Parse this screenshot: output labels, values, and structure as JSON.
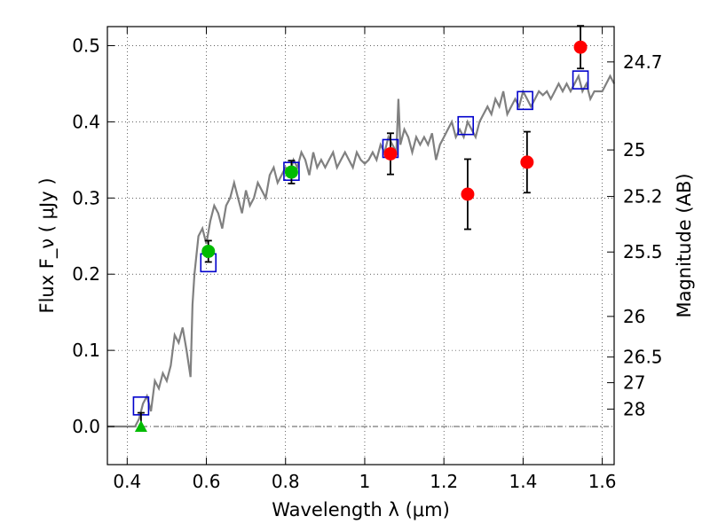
{
  "chart_data": {
    "type": "scatter",
    "xlabel": "Wavelength  λ (μm)",
    "ylabel": "Flux  F_ν  ( μJy )",
    "y2label": "Magnitude (AB)",
    "xlim": [
      0.35,
      1.63
    ],
    "ylim": [
      -0.05,
      0.525
    ],
    "grid": true,
    "x_ticks": [
      0.4,
      0.6,
      0.8,
      1.0,
      1.2,
      1.4,
      1.6
    ],
    "x_tick_labels": [
      "0.4",
      "0.6",
      "0.8",
      "1",
      "1.2",
      "1.4",
      "1.6"
    ],
    "y_ticks": [
      0.0,
      0.1,
      0.2,
      0.3,
      0.4,
      0.5
    ],
    "y_tick_labels": [
      "0.0",
      "0.1",
      "0.2",
      "0.3",
      "0.4",
      "0.5"
    ],
    "y2_ticks": [
      "24.7",
      "25",
      "25.2",
      "25.5",
      "26",
      "26.5",
      "27",
      "28"
    ],
    "colors": {
      "template": "#808080",
      "model_box": "#0000cc",
      "red_point": "#ff0000",
      "green_point": "#00bb00",
      "error_bar": "#000000",
      "zero_line": "#555555"
    },
    "series": [
      {
        "kind": "line",
        "color_key": "template",
        "x": [
          0.35,
          0.42,
          0.43,
          0.44,
          0.45,
          0.46,
          0.47,
          0.48,
          0.49,
          0.5,
          0.51,
          0.52,
          0.53,
          0.54,
          0.55,
          0.56,
          0.565,
          0.57,
          0.58,
          0.59,
          0.6,
          0.61,
          0.62,
          0.63,
          0.64,
          0.65,
          0.66,
          0.67,
          0.68,
          0.69,
          0.7,
          0.71,
          0.72,
          0.73,
          0.74,
          0.75,
          0.76,
          0.77,
          0.78,
          0.79,
          0.8,
          0.81,
          0.82,
          0.83,
          0.84,
          0.85,
          0.86,
          0.87,
          0.88,
          0.89,
          0.9,
          0.91,
          0.92,
          0.93,
          0.94,
          0.95,
          0.96,
          0.97,
          0.98,
          0.99,
          1.0,
          1.01,
          1.02,
          1.03,
          1.04,
          1.05,
          1.06,
          1.07,
          1.08,
          1.085,
          1.09,
          1.1,
          1.11,
          1.12,
          1.13,
          1.14,
          1.15,
          1.16,
          1.17,
          1.18,
          1.19,
          1.2,
          1.21,
          1.22,
          1.23,
          1.24,
          1.25,
          1.26,
          1.27,
          1.28,
          1.29,
          1.3,
          1.31,
          1.32,
          1.33,
          1.34,
          1.35,
          1.36,
          1.37,
          1.38,
          1.39,
          1.4,
          1.41,
          1.42,
          1.43,
          1.44,
          1.45,
          1.46,
          1.47,
          1.48,
          1.49,
          1.5,
          1.51,
          1.52,
          1.53,
          1.54,
          1.55,
          1.56,
          1.57,
          1.58,
          1.59,
          1.6,
          1.61,
          1.62,
          1.63
        ],
        "y": [
          0.0,
          0.0,
          0.01,
          0.03,
          0.04,
          0.02,
          0.06,
          0.05,
          0.07,
          0.06,
          0.08,
          0.12,
          0.11,
          0.13,
          0.1,
          0.065,
          0.16,
          0.2,
          0.25,
          0.26,
          0.24,
          0.27,
          0.29,
          0.28,
          0.26,
          0.29,
          0.3,
          0.32,
          0.3,
          0.28,
          0.31,
          0.29,
          0.3,
          0.32,
          0.31,
          0.3,
          0.33,
          0.34,
          0.32,
          0.33,
          0.34,
          0.33,
          0.35,
          0.34,
          0.36,
          0.35,
          0.33,
          0.36,
          0.34,
          0.35,
          0.34,
          0.35,
          0.36,
          0.34,
          0.35,
          0.36,
          0.35,
          0.34,
          0.36,
          0.35,
          0.345,
          0.35,
          0.36,
          0.35,
          0.37,
          0.36,
          0.38,
          0.37,
          0.36,
          0.43,
          0.37,
          0.39,
          0.38,
          0.36,
          0.38,
          0.37,
          0.38,
          0.37,
          0.385,
          0.35,
          0.37,
          0.38,
          0.39,
          0.4,
          0.38,
          0.39,
          0.38,
          0.4,
          0.39,
          0.38,
          0.4,
          0.41,
          0.42,
          0.41,
          0.43,
          0.42,
          0.44,
          0.41,
          0.42,
          0.43,
          0.42,
          0.44,
          0.43,
          0.42,
          0.43,
          0.44,
          0.435,
          0.44,
          0.43,
          0.44,
          0.45,
          0.44,
          0.45,
          0.44,
          0.45,
          0.46,
          0.44,
          0.45,
          0.43,
          0.44,
          0.44,
          0.44,
          0.45,
          0.46,
          0.45
        ]
      },
      {
        "kind": "boxes",
        "color_key": "model_box",
        "x": [
          0.435,
          0.605,
          0.815,
          1.065,
          1.255,
          1.405,
          1.545
        ],
        "y": [
          0.027,
          0.215,
          0.335,
          0.365,
          0.395,
          0.428,
          0.455
        ]
      },
      {
        "kind": "points",
        "color_key": "green_point",
        "x": [
          0.605,
          0.815
        ],
        "y": [
          0.23,
          0.334
        ],
        "err": [
          0.014,
          0.015
        ]
      },
      {
        "kind": "points",
        "color_key": "red_point",
        "x": [
          1.065,
          1.26,
          1.41,
          1.545
        ],
        "y": [
          0.358,
          0.305,
          0.347,
          0.498
        ],
        "err": [
          0.027,
          0.046,
          0.04,
          0.028
        ]
      },
      {
        "kind": "triangle",
        "color_key": "green_point",
        "x": [
          0.435
        ],
        "y": [
          0.0
        ],
        "err_up": [
          0.018
        ]
      }
    ]
  }
}
